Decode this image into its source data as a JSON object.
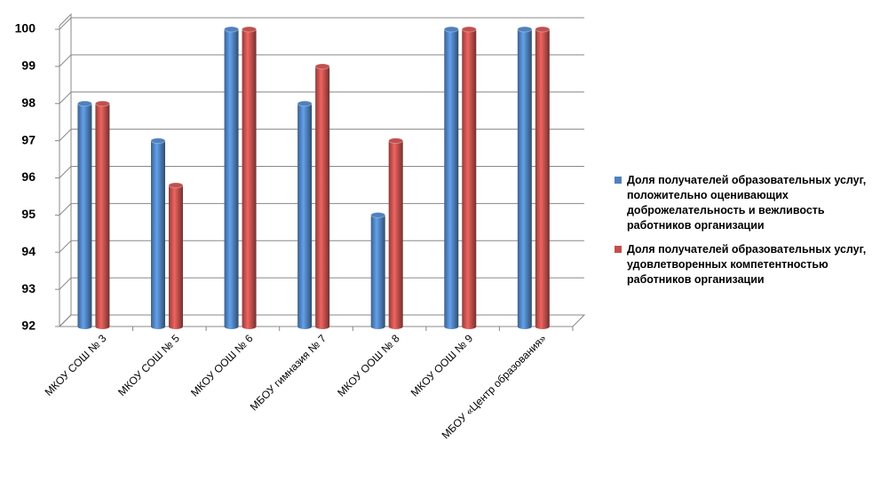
{
  "chart_data": {
    "type": "bar",
    "categories": [
      "МКОУ СОШ № 3",
      "МКОУ СОШ № 5",
      "МКОУ ООШ № 6",
      "МБОУ гимназия № 7",
      "МКОУ  ООШ № 8",
      "МКОУ ООШ № 9",
      "МБОУ «Центр образования»"
    ],
    "series": [
      {
        "name": "Доля получателей образовательных услуг, положительно оценивающих доброжелательность  и вежливость работников организации",
        "color": "#4f81bd",
        "values": [
          98,
          97,
          100,
          98,
          95,
          100,
          100
        ]
      },
      {
        "name": "Доля получателей образовательных услуг, удовлетворенных компетентностью работников организации",
        "color": "#c0504d",
        "values": [
          98,
          95.8,
          100,
          99,
          97,
          100,
          100
        ]
      }
    ],
    "ylim": [
      92,
      100
    ],
    "yticks": [
      92,
      93,
      94,
      95,
      96,
      97,
      98,
      99,
      100
    ],
    "grid": true,
    "legend": "right"
  }
}
